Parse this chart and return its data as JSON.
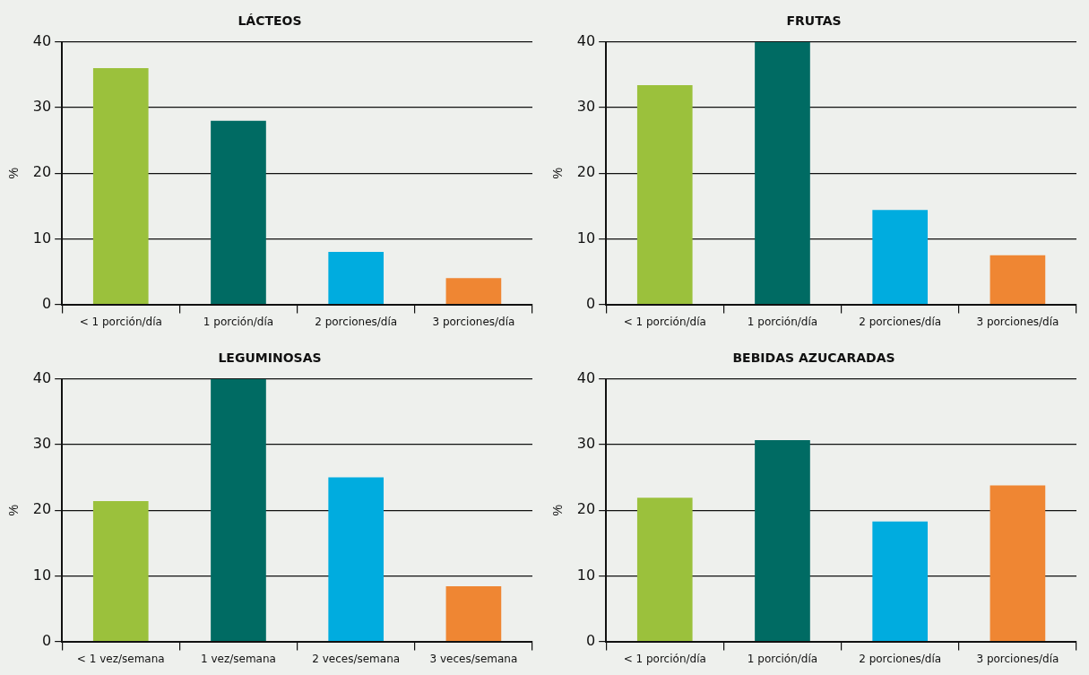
{
  "chart_data": [
    {
      "type": "bar",
      "title": "LÁCTEOS",
      "ylabel": "%",
      "categories": [
        "< 1 porción/día",
        "1 porción/día",
        "2 porciones/día",
        "3 porciones/día"
      ],
      "values": [
        36,
        28,
        8,
        4
      ],
      "colors": [
        "#9bc13c",
        "#006b63",
        "#00acdf",
        "#ef8633"
      ],
      "ylim": [
        0,
        40
      ],
      "yticks": [
        0,
        10,
        20,
        30,
        40
      ],
      "grid": "y"
    },
    {
      "type": "bar",
      "title": "FRUTAS",
      "ylabel": "%",
      "categories": [
        "< 1 porción/día",
        "1 porción/día",
        "2 porciones/día",
        "3 porciones/día"
      ],
      "values": [
        33.4,
        40,
        14.4,
        7.5
      ],
      "colors": [
        "#9bc13c",
        "#006b63",
        "#00acdf",
        "#ef8633"
      ],
      "ylim": [
        0,
        40
      ],
      "yticks": [
        0,
        10,
        20,
        30,
        40
      ],
      "grid": "y"
    },
    {
      "type": "bar",
      "title": "LEGUMINOSAS",
      "ylabel": "%",
      "categories": [
        "< 1 vez/semana",
        "1 vez/semana",
        "2 veces/semana",
        "3 veces/semana"
      ],
      "values": [
        21.4,
        40,
        25,
        8.4
      ],
      "colors": [
        "#9bc13c",
        "#006b63",
        "#00acdf",
        "#ef8633"
      ],
      "ylim": [
        0,
        40
      ],
      "yticks": [
        0,
        10,
        20,
        30,
        40
      ],
      "grid": "y"
    },
    {
      "type": "bar",
      "title": "BEBIDAS AZUCARADAS",
      "ylabel": "%",
      "categories": [
        "< 1 porción/día",
        "1 porción/día",
        "2 porciones/día",
        "3 porciones/día"
      ],
      "values": [
        21.9,
        30.7,
        18.3,
        23.8
      ],
      "colors": [
        "#9bc13c",
        "#006b63",
        "#00acdf",
        "#ef8633"
      ],
      "ylim": [
        0,
        40
      ],
      "yticks": [
        0,
        10,
        20,
        30,
        40
      ],
      "grid": "y"
    }
  ]
}
